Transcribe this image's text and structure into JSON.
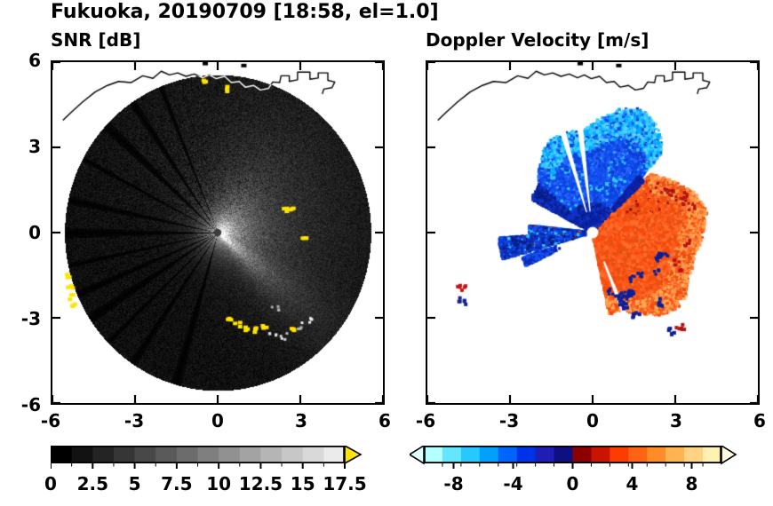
{
  "title": "Fukuoka, 20190709 [18:58, el=1.0]",
  "panels": {
    "snr": {
      "title": "SNR [dB]"
    },
    "doppler": {
      "title": "Doppler Velocity [m/s]"
    }
  },
  "coastline": {
    "points": [
      [
        -5.62,
        3.95
      ],
      [
        -5.3,
        4.25
      ],
      [
        -4.9,
        4.6
      ],
      [
        -4.45,
        4.95
      ],
      [
        -4.0,
        5.18
      ],
      [
        -3.6,
        5.32
      ],
      [
        -3.15,
        5.28
      ],
      [
        -2.72,
        5.52
      ],
      [
        -2.35,
        5.43
      ],
      [
        -2.05,
        5.68
      ],
      [
        -1.75,
        5.55
      ],
      [
        -1.45,
        5.62
      ],
      [
        -1.15,
        5.5
      ],
      [
        -0.85,
        5.58
      ],
      [
        -0.55,
        5.45
      ],
      [
        -0.3,
        5.55
      ],
      [
        -0.05,
        5.42
      ],
      [
        0.25,
        5.5
      ],
      [
        0.5,
        5.28
      ],
      [
        0.78,
        5.32
      ],
      [
        1.0,
        5.12
      ],
      [
        1.3,
        5.18
      ],
      [
        1.55,
        5.02
      ],
      [
        1.85,
        5.08
      ],
      [
        2.0,
        5.3
      ],
      [
        2.25,
        5.28
      ],
      [
        2.3,
        5.52
      ],
      [
        2.6,
        5.52
      ],
      [
        2.6,
        5.32
      ],
      [
        2.9,
        5.38
      ],
      [
        2.9,
        5.65
      ],
      [
        3.35,
        5.65
      ],
      [
        3.35,
        5.4
      ],
      [
        3.65,
        5.44
      ],
      [
        3.65,
        5.62
      ],
      [
        4.0,
        5.62
      ],
      [
        4.0,
        5.36
      ],
      [
        4.25,
        5.3
      ],
      [
        4.15,
        5.1
      ],
      [
        3.85,
        5.05
      ],
      [
        3.8,
        4.88
      ]
    ],
    "islets": [
      [
        -0.45,
        5.95
      ],
      [
        0.95,
        5.88
      ]
    ]
  },
  "chart_data": [
    {
      "type": "heatmap",
      "panel": "left",
      "title": "SNR [dB]",
      "xlabel": "",
      "ylabel": "",
      "xlim": [
        -6,
        6
      ],
      "ylim": [
        -6,
        6
      ],
      "xticks": [
        -6,
        -3,
        0,
        3,
        6
      ],
      "yticks": [
        6,
        3,
        0,
        -3,
        -6
      ],
      "scan_radius": 5.56,
      "colorbar": {
        "min": 0,
        "max": 17.5,
        "segments": 14,
        "start_color": "#000000",
        "end_color": "#ebebeb",
        "over_color": "#ffe400",
        "tick_labels": [
          "0",
          "2.5",
          "5",
          "7.5",
          "10",
          "12.5",
          "15",
          "17.5"
        ]
      },
      "features": {
        "bright_fan": {
          "center_deg": -8,
          "halfwidth_deg": 38
        },
        "se_streak_deg": -40,
        "spoke_angles_deg": [
          112,
          124,
          137,
          152,
          168,
          180,
          192,
          203,
          213,
          224,
          236,
          254
        ],
        "yellow_patches": [
          [
            -5.5,
            -1.5
          ],
          [
            -5.42,
            -1.85
          ],
          [
            -5.35,
            -2.2
          ],
          [
            -5.28,
            -2.45
          ],
          [
            0.35,
            -3.0
          ],
          [
            0.65,
            -3.2
          ],
          [
            0.95,
            -3.3
          ],
          [
            1.3,
            -3.38
          ],
          [
            1.62,
            -3.3
          ],
          [
            2.6,
            -3.3
          ],
          [
            2.4,
            0.85
          ],
          [
            2.62,
            0.9
          ],
          [
            -0.6,
            5.38
          ],
          [
            0.3,
            5.12
          ],
          [
            3.05,
            -0.2
          ]
        ],
        "gray_blobs": [
          [
            1.95,
            -3.55
          ],
          [
            2.35,
            -3.6
          ],
          [
            2.9,
            -3.25
          ],
          [
            3.3,
            -3.0
          ],
          [
            2.05,
            -2.6
          ]
        ]
      }
    },
    {
      "type": "heatmap",
      "panel": "right",
      "title": "Doppler Velocity [m/s]",
      "xlabel": "",
      "ylabel": "",
      "xlim": [
        -6,
        6
      ],
      "ylim": [
        -6,
        6
      ],
      "xticks": [
        -6,
        -3,
        0,
        3,
        6
      ],
      "yticks": [
        6,
        3,
        0,
        -3,
        -6
      ],
      "colorbar": {
        "min": -10,
        "max": 10,
        "colors": [
          "#b4ffff",
          "#64e6ff",
          "#28c8ff",
          "#00a0ff",
          "#0064ff",
          "#0032e6",
          "#1e1eb4",
          "#0f0f82",
          "#8c0000",
          "#c81400",
          "#ff3c00",
          "#ff6414",
          "#ff8c28",
          "#ffb450",
          "#ffd284",
          "#fff0b4"
        ],
        "under_color": "#e1ffff",
        "over_color": "#fffbe1",
        "tick_labels": [
          "-8",
          "-4",
          "0",
          "4",
          "8"
        ]
      },
      "fields": {
        "toward": {
          "sector_deg": [
            48,
            152
          ],
          "r_max": 4.3,
          "colors": {
            "outer": "#2fc8ff",
            "mid": "#1450f0",
            "inner": "#0a23a8"
          }
        },
        "away": {
          "sector_deg": [
            -78,
            44
          ],
          "r_max": 4.0,
          "colors": {
            "core": "#ff5a1e",
            "light": "#ff9a46",
            "dark_red": "#b41414",
            "navy_specks": "#0f1e96"
          }
        },
        "west_streak": {
          "sector_deg": [
            174,
            196
          ],
          "r_max": 3.4
        },
        "gap_rays": [
          {
            "deg": 97,
            "hw": 1.6,
            "r0": 0.75,
            "r1": 4.6
          },
          {
            "deg": 107,
            "hw": 1.6,
            "r0": 0.75,
            "r1": 4.6
          },
          {
            "deg": -68,
            "hw": 1.6,
            "r0": 1.1,
            "r1": 3.3
          }
        ],
        "isolated_patches": [
          [
            -4.82,
            -1.9,
            "#c81414"
          ],
          [
            -4.78,
            -2.35,
            "#102090"
          ],
          [
            2.8,
            -3.45,
            "#102090"
          ],
          [
            3.12,
            -3.28,
            "#b41414"
          ],
          [
            1.05,
            -2.55,
            "#0f1e96"
          ],
          [
            1.5,
            -2.82,
            "#0f1e96"
          ],
          [
            2.45,
            -2.4,
            "#0f1e96"
          ]
        ]
      }
    }
  ]
}
